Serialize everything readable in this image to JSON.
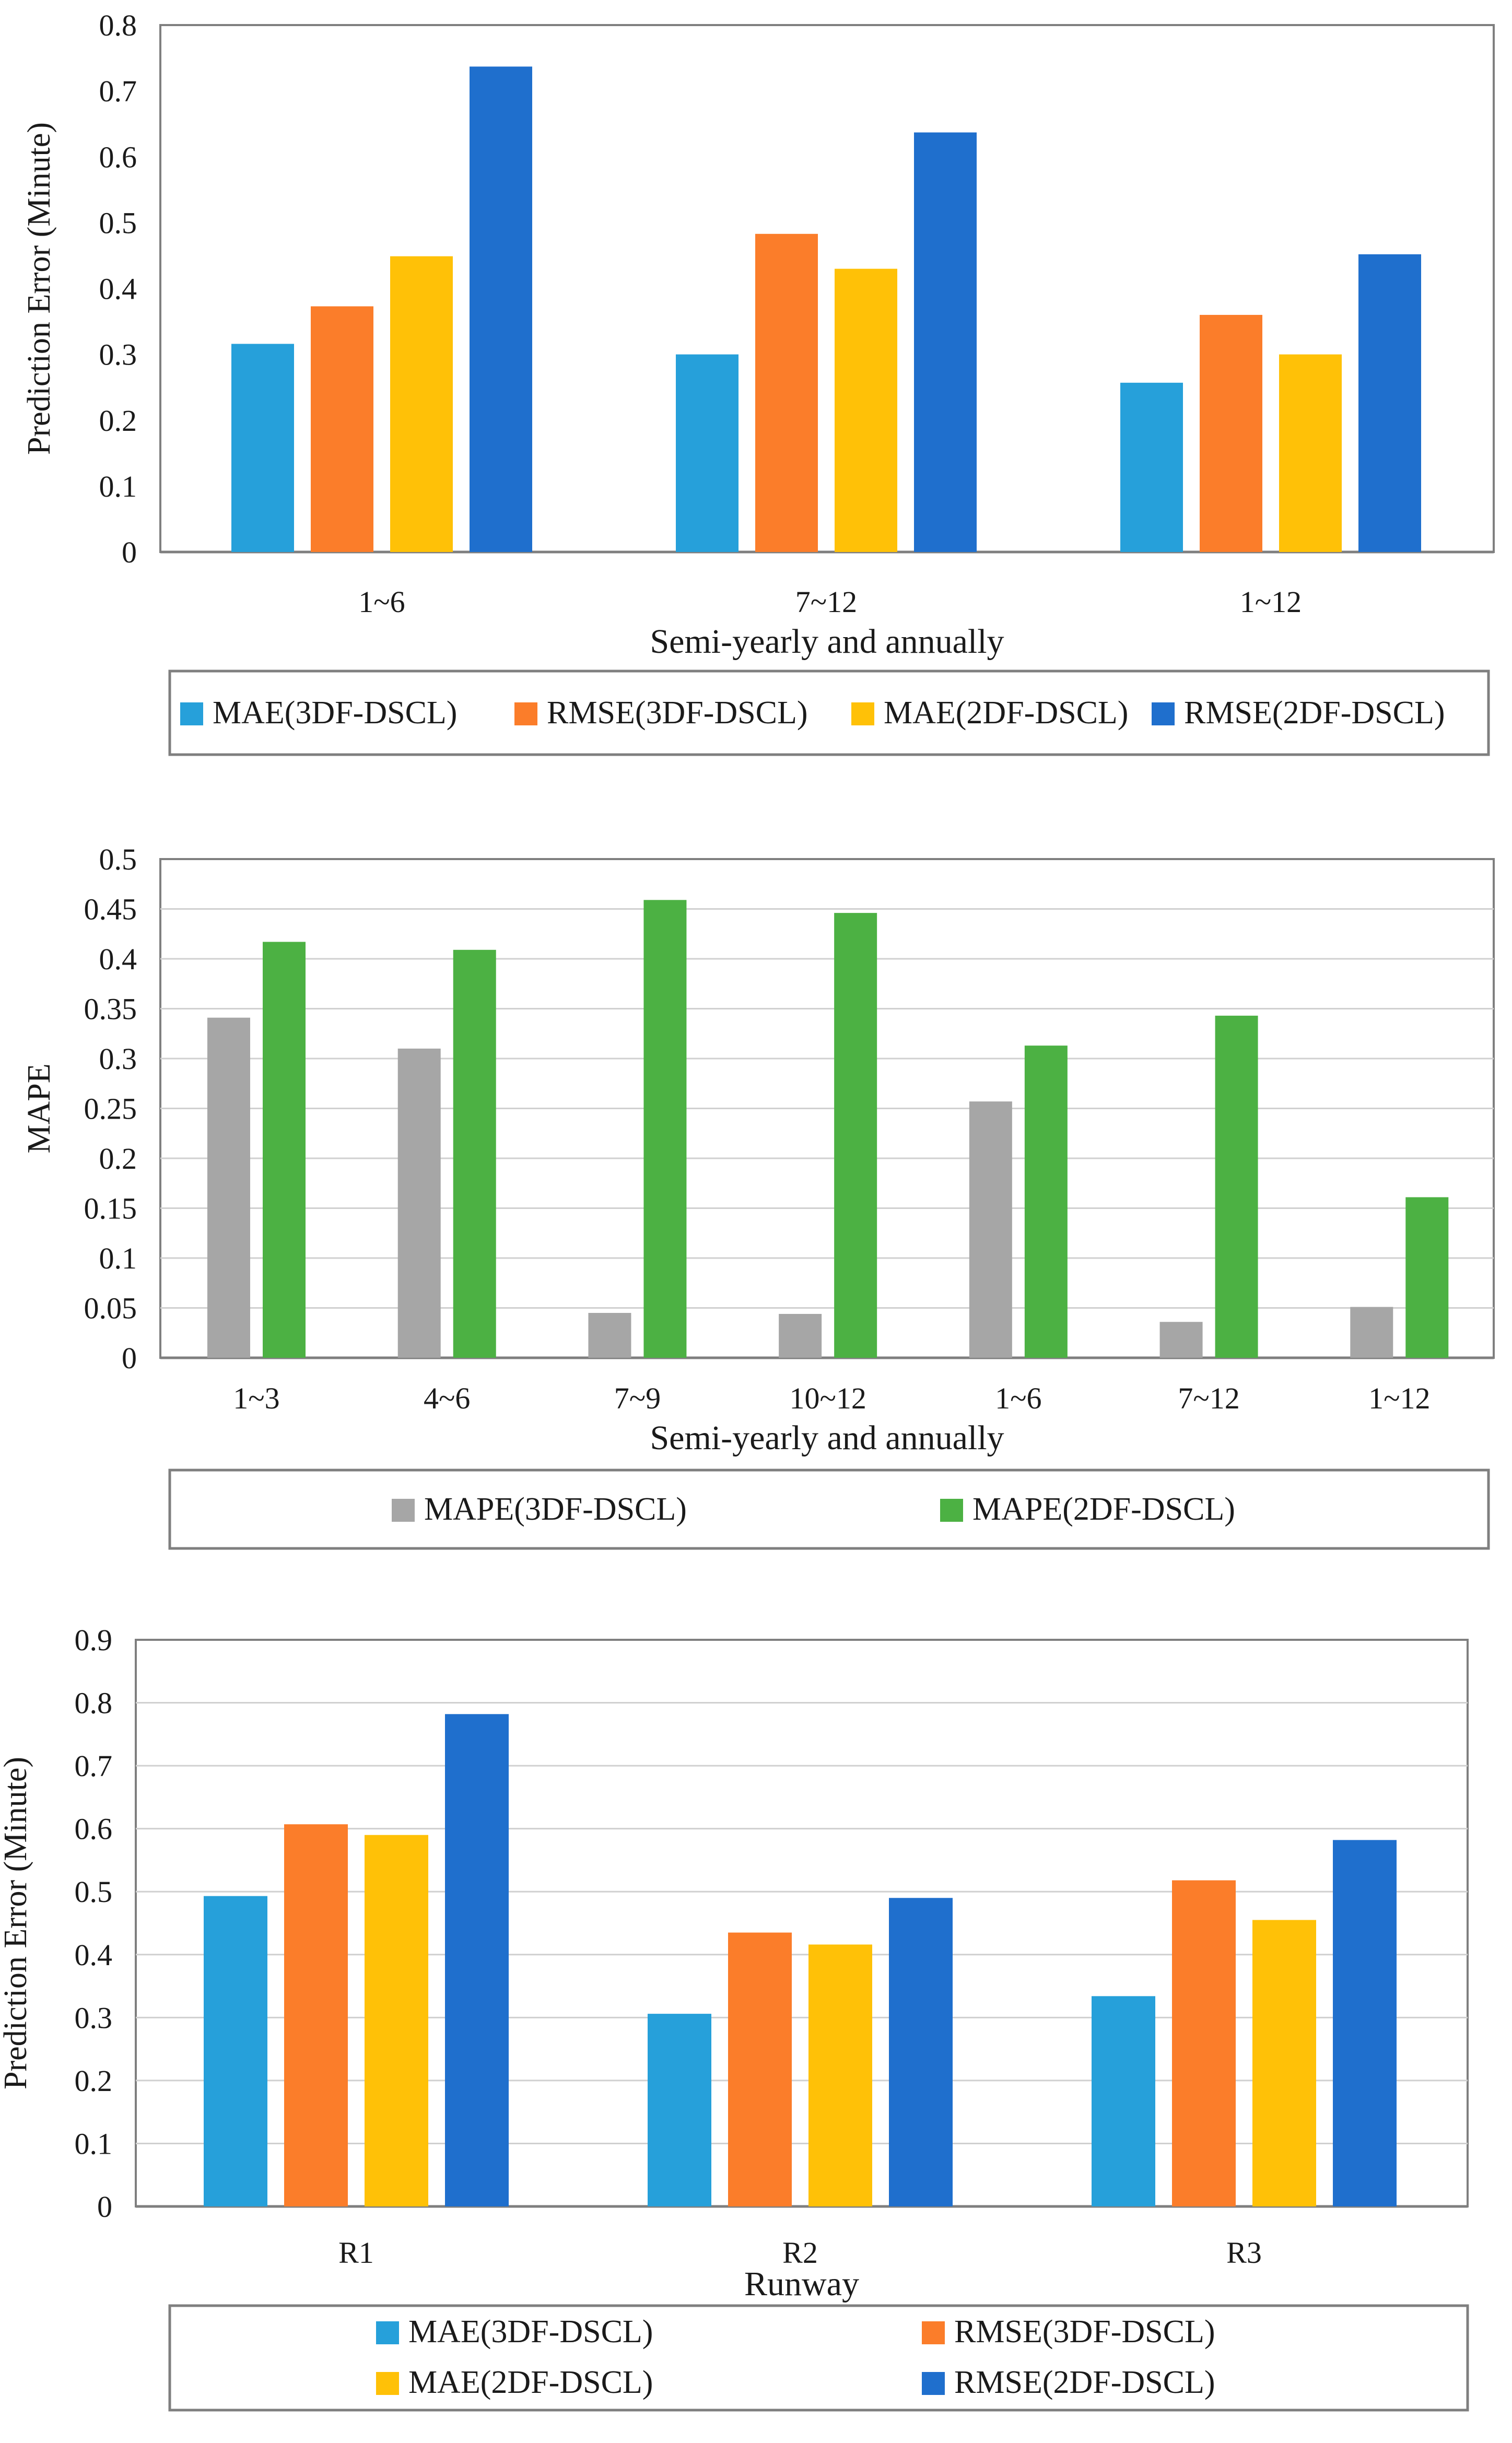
{
  "chart_data": [
    {
      "type": "bar",
      "title": "",
      "ylabel": "Prediction Error (Minute)",
      "xlabel": "Semi-yearly and annually",
      "ylim": [
        0,
        0.8
      ],
      "yticks": [
        "0",
        "0.1",
        "0.2",
        "0.3",
        "0.4",
        "0.5",
        "0.6",
        "0.7",
        "0.8"
      ],
      "grid": false,
      "legend_position": "bottom",
      "categories": [
        "1~6",
        "7~12",
        "1~12"
      ],
      "series": [
        {
          "name": "MAE(3DF-DSCL)",
          "color": "#26A0DA",
          "values": [
            0.316,
            0.3,
            0.257
          ]
        },
        {
          "name": "RMSE(3DF-DSCL)",
          "color": "#FB7D2A",
          "values": [
            0.373,
            0.483,
            0.36
          ]
        },
        {
          "name": "MAE(2DF-DSCL)",
          "color": "#FFC107",
          "values": [
            0.449,
            0.43,
            0.3
          ]
        },
        {
          "name": "RMSE(2DF-DSCL)",
          "color": "#1F6FCD",
          "values": [
            0.737,
            0.637,
            0.452
          ]
        }
      ]
    },
    {
      "type": "bar",
      "title": "",
      "ylabel": "MAPE",
      "xlabel": "Semi-yearly and annually",
      "ylim": [
        0,
        0.5
      ],
      "yticks": [
        "0",
        "0.05",
        "0.1",
        "0.15",
        "0.2",
        "0.25",
        "0.3",
        "0.35",
        "0.4",
        "0.45",
        "0.5"
      ],
      "grid": true,
      "legend_position": "bottom",
      "categories": [
        "1~3",
        "4~6",
        "7~9",
        "10~12",
        "1~6",
        "7~12",
        "1~12"
      ],
      "series": [
        {
          "name": "MAPE(3DF-DSCL)",
          "color": "#A6A6A6",
          "values": [
            0.341,
            0.31,
            0.045,
            0.044,
            0.257,
            0.036,
            0.051
          ]
        },
        {
          "name": "MAPE(2DF-DSCL)",
          "color": "#4CB143",
          "values": [
            0.417,
            0.409,
            0.459,
            0.446,
            0.313,
            0.343,
            0.161
          ]
        }
      ]
    },
    {
      "type": "bar",
      "title": "",
      "ylabel": "Prediction Error (Minute)",
      "xlabel": "Runway",
      "ylim": [
        0,
        0.9
      ],
      "yticks": [
        "0",
        "0.1",
        "0.2",
        "0.3",
        "0.4",
        "0.5",
        "0.6",
        "0.7",
        "0.8",
        "0.9"
      ],
      "grid": true,
      "legend_position": "bottom",
      "categories": [
        "R1",
        "R2",
        "R3"
      ],
      "series": [
        {
          "name": "MAE(3DF-DSCL)",
          "color": "#26A0DA",
          "values": [
            0.493,
            0.306,
            0.334
          ]
        },
        {
          "name": "RMSE(3DF-DSCL)",
          "color": "#FB7D2A",
          "values": [
            0.607,
            0.435,
            0.518
          ]
        },
        {
          "name": "MAE(2DF-DSCL)",
          "color": "#FFC107",
          "values": [
            0.59,
            0.416,
            0.455
          ]
        },
        {
          "name": "RMSE(2DF-DSCL)",
          "color": "#1F6FCD",
          "values": [
            0.782,
            0.49,
            0.582
          ]
        }
      ]
    }
  ]
}
